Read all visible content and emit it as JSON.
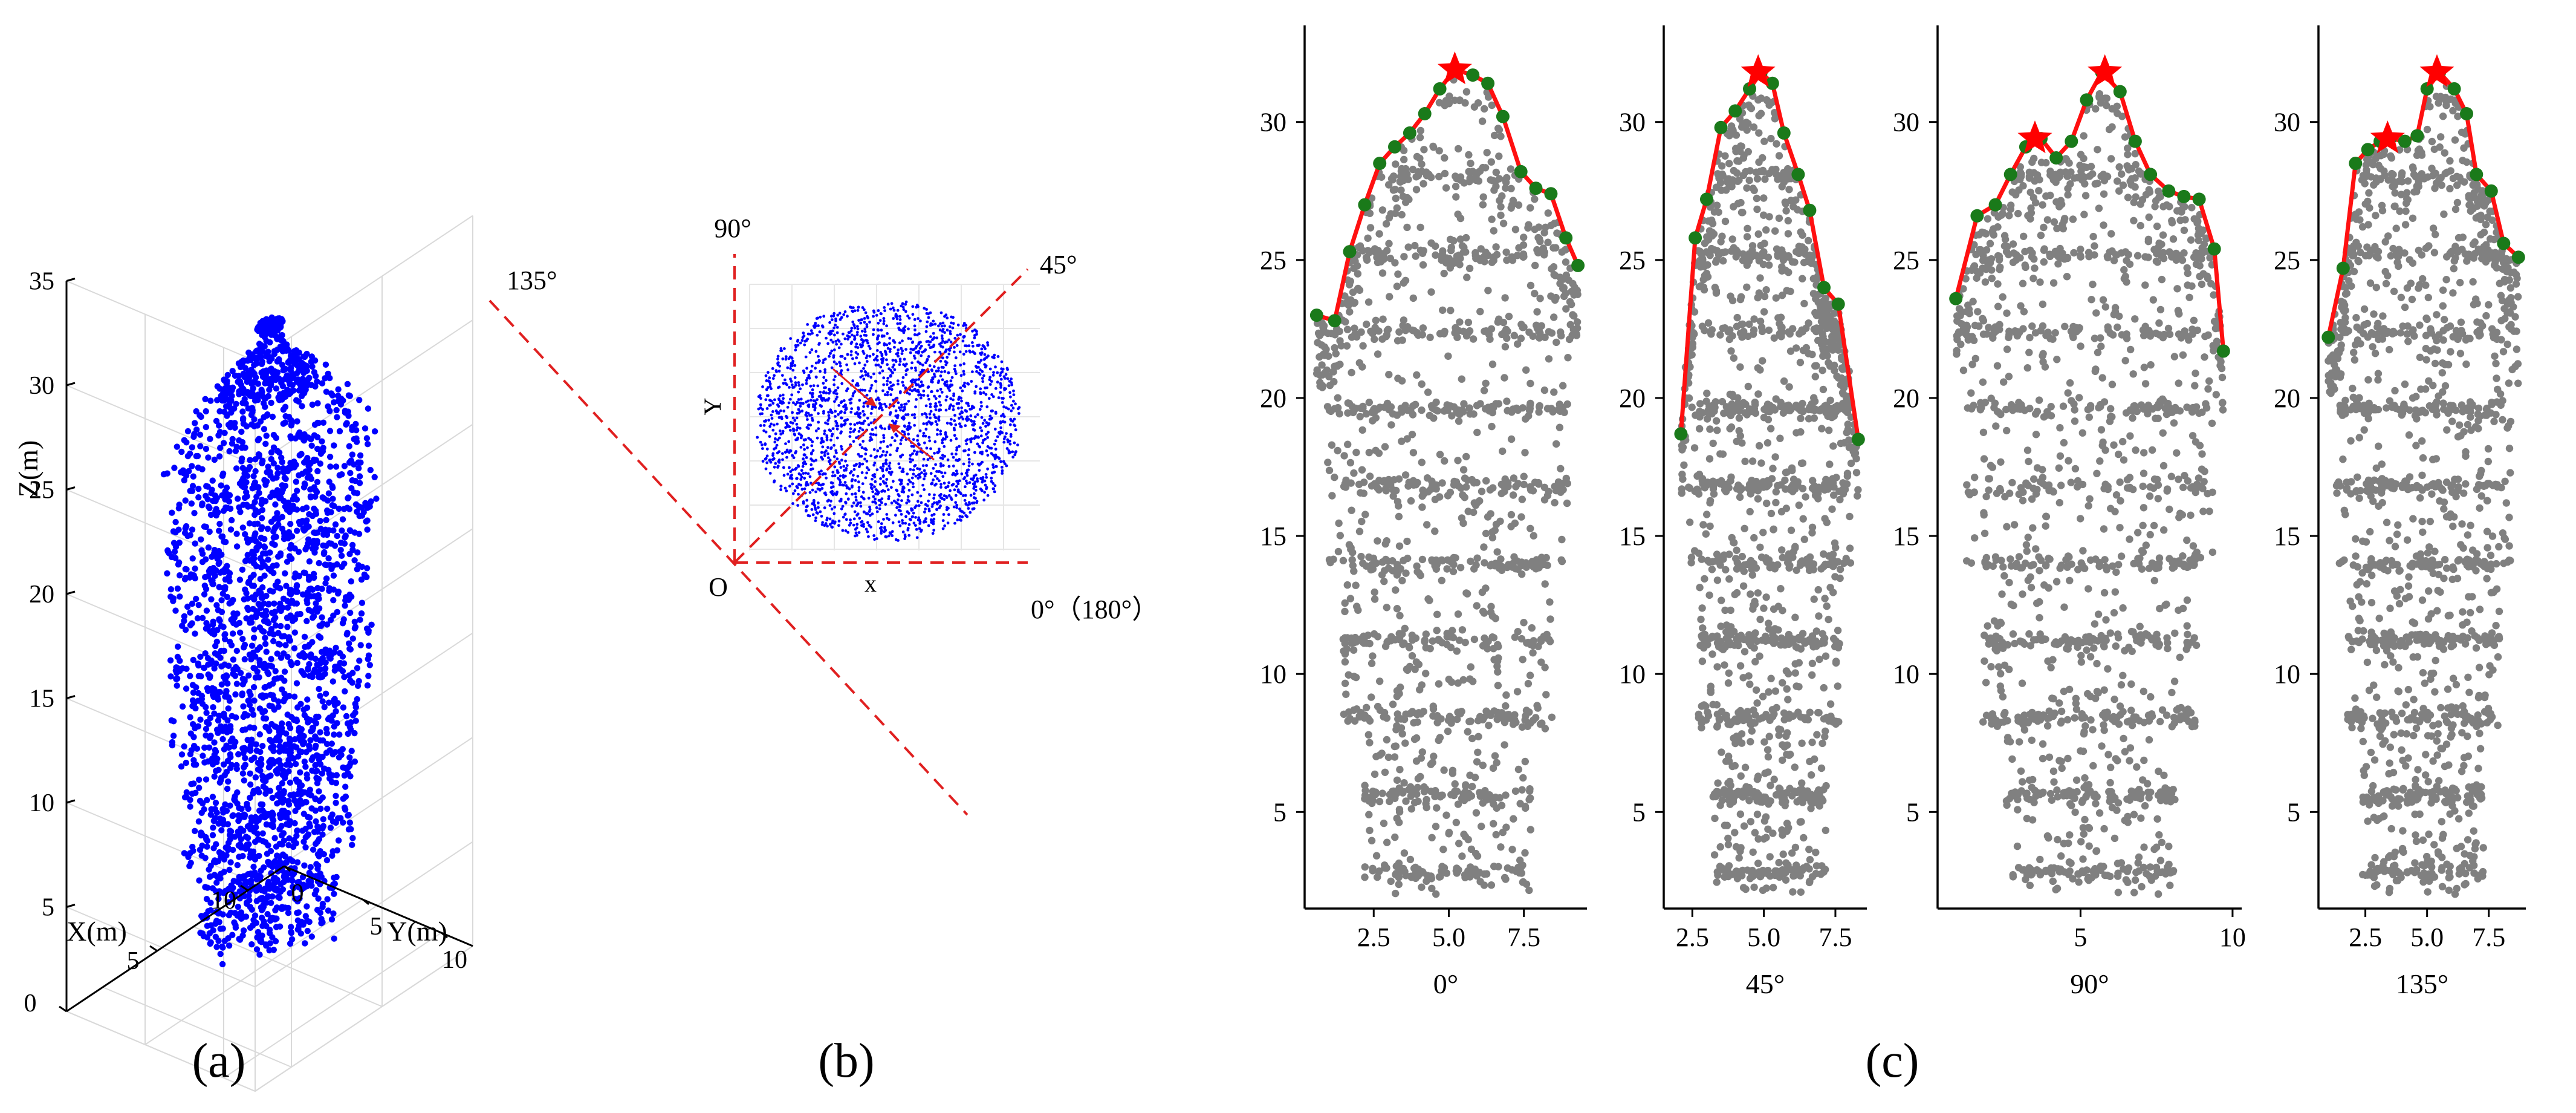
{
  "figure": {
    "panel_labels": [
      "(a)",
      "(b)",
      "(c)"
    ]
  },
  "colors": {
    "scatter_3d": "#0000ff",
    "profile_points": "#808080",
    "contour": "#ff1010",
    "contour_points": "#1a7a1a",
    "peak_star": "#ff0000",
    "direction_lines": "#e02020",
    "axes": "#000000",
    "grid": "#d9d9d9"
  },
  "chart_data": [
    {
      "id": "a",
      "type": "scatter",
      "title": "(a)",
      "xlabel": "X(m)",
      "ylabel": "Y(m)",
      "zlabel": "Z(m)",
      "x_ticks": [
        "0",
        "5",
        "10"
      ],
      "y_ticks": [
        "0",
        "5",
        "10"
      ],
      "z_ticks": [
        "5",
        "10",
        "15",
        "20",
        "25",
        "30",
        "35"
      ],
      "xlim": [
        0,
        12
      ],
      "ylim": [
        0,
        12
      ],
      "zlim": [
        0,
        35
      ],
      "description": "3D point cloud of a single tree, about 2–31 m tall"
    },
    {
      "id": "b",
      "type": "scatter",
      "title": "(b)",
      "xlabel": "x",
      "ylabel": "Y",
      "origin_label": "O",
      "direction_labels": [
        "90°",
        "45°",
        "135°",
        "0°（180°）"
      ]
    },
    {
      "id": "c0",
      "type": "scatter",
      "xlabel": "0°",
      "x_ticks": [
        2.5,
        5.0,
        7.5
      ],
      "x_tick_labels": [
        "2.5",
        "5.0",
        "7.5"
      ],
      "xlim": [
        0.2,
        9.6
      ],
      "y_ticks": [
        5,
        10,
        15,
        20,
        25,
        30
      ],
      "ylim": [
        1.5,
        33.5
      ],
      "contour_x": [
        0.6,
        1.2,
        1.7,
        2.2,
        2.7,
        3.2,
        3.7,
        4.2,
        4.7,
        5.2,
        5.8,
        6.3,
        6.8,
        7.4,
        7.9,
        8.4,
        8.9,
        9.3
      ],
      "contour_y": [
        23.0,
        22.8,
        25.3,
        27.0,
        28.5,
        29.1,
        29.6,
        30.3,
        31.2,
        31.9,
        31.7,
        31.4,
        30.2,
        28.2,
        27.6,
        27.4,
        25.8,
        24.8
      ],
      "peak_x": 5.2,
      "peak_y": 31.9
    },
    {
      "id": "c45",
      "type": "scatter",
      "xlabel": "45°",
      "x_ticks": [
        2.5,
        5.0,
        7.5
      ],
      "x_tick_labels": [
        "2.5",
        "5.0",
        "7.5"
      ],
      "xlim": [
        1.5,
        8.6
      ],
      "y_ticks": [
        5,
        10,
        15,
        20,
        25,
        30
      ],
      "ylim": [
        1.5,
        33.5
      ],
      "contour_x": [
        2.1,
        2.6,
        3.0,
        3.5,
        4.0,
        4.5,
        4.9,
        5.3,
        5.7,
        6.2,
        6.6,
        7.1,
        7.6,
        8.3
      ],
      "contour_y": [
        18.7,
        25.8,
        27.2,
        29.8,
        30.4,
        31.2,
        31.8,
        31.4,
        29.6,
        28.1,
        26.8,
        24.0,
        23.4,
        18.5
      ],
      "peak_x": 4.8,
      "peak_y": 31.8
    },
    {
      "id": "c90",
      "type": "scatter",
      "xlabel": "90°",
      "x_ticks": [
        5,
        10
      ],
      "x_tick_labels": [
        "5",
        "10"
      ],
      "xlim": [
        0.3,
        10.3
      ],
      "y_ticks": [
        5,
        10,
        15,
        20,
        25,
        30
      ],
      "ylim": [
        1.5,
        33.5
      ],
      "contour_x": [
        0.9,
        1.6,
        2.2,
        2.7,
        3.2,
        3.7,
        4.2,
        4.7,
        5.2,
        5.7,
        6.3,
        6.8,
        7.3,
        7.9,
        8.4,
        8.9,
        9.4,
        9.7
      ],
      "contour_y": [
        23.6,
        26.6,
        27.0,
        28.1,
        29.1,
        29.4,
        28.7,
        29.3,
        30.8,
        31.8,
        31.1,
        29.3,
        28.1,
        27.5,
        27.3,
        27.2,
        25.4,
        21.7
      ],
      "peak_x": 5.8,
      "peak_y": 31.8,
      "peak2_x": 3.5,
      "peak2_y": 29.4
    },
    {
      "id": "c135",
      "type": "scatter",
      "xlabel": "135°",
      "x_ticks": [
        2.5,
        5.0,
        7.5
      ],
      "x_tick_labels": [
        "2.5",
        "5.0",
        "7.5"
      ],
      "xlim": [
        0.6,
        9.0
      ],
      "y_ticks": [
        5,
        10,
        15,
        20,
        25,
        30
      ],
      "ylim": [
        1.5,
        33.5
      ],
      "contour_x": [
        1.0,
        1.6,
        2.1,
        2.6,
        3.1,
        3.5,
        4.1,
        4.6,
        5.0,
        5.5,
        6.1,
        6.6,
        7.0,
        7.6,
        8.1,
        8.7
      ],
      "contour_y": [
        22.2,
        24.7,
        28.5,
        29.0,
        29.3,
        29.4,
        29.3,
        29.5,
        31.2,
        31.8,
        31.2,
        30.3,
        28.1,
        27.5,
        25.6,
        25.1
      ],
      "peak_x": 5.4,
      "peak_y": 31.8,
      "peak2_x": 3.4,
      "peak2_y": 29.4
    }
  ]
}
